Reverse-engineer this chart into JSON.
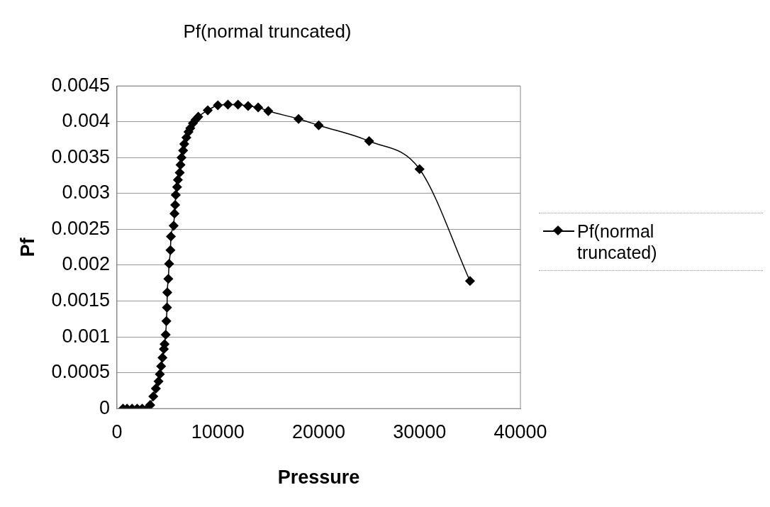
{
  "chart_data": {
    "type": "line",
    "title": "Pf(normal truncated)",
    "xlabel": "Pressure",
    "ylabel": "Pf",
    "xlim": [
      0,
      40000
    ],
    "xticks": [
      0,
      10000,
      20000,
      30000,
      40000
    ],
    "ylim": [
      0,
      0.0045
    ],
    "yticks": [
      0,
      0.0005,
      0.001,
      0.0015,
      0.002,
      0.0025,
      0.003,
      0.0035,
      0.004,
      0.0045
    ],
    "grid": "y",
    "legend": "right",
    "marker": "diamond",
    "line_style": "solid",
    "series": [
      {
        "name": "Pf(normal truncated)",
        "color": "#000000",
        "x": [
          600,
          1000,
          1500,
          2000,
          2500,
          3000,
          3300,
          3600,
          3860,
          4120,
          4250,
          4380,
          4510,
          4650,
          4720,
          4830,
          4900,
          4960,
          4990,
          5090,
          5170,
          5300,
          5350,
          5620,
          5700,
          5770,
          5830,
          5960,
          6040,
          6220,
          6300,
          6400,
          6560,
          6670,
          6880,
          7090,
          7270,
          7530,
          7800,
          8060,
          9000,
          10000,
          11000,
          12000,
          13000,
          14000,
          15000,
          18000,
          20000,
          25000,
          30000,
          35000
        ],
        "values": [
          0,
          0,
          0,
          0,
          0,
          0,
          5e-05,
          0.00017,
          0.00028,
          0.00038,
          0.00048,
          0.00059,
          0.00071,
          0.00083,
          0.0009,
          0.00103,
          0.00122,
          0.00141,
          0.00162,
          0.00181,
          0.00202,
          0.00221,
          0.0024,
          0.00255,
          0.00272,
          0.00284,
          0.00298,
          0.00309,
          0.00319,
          0.00329,
          0.0034,
          0.0035,
          0.0036,
          0.00369,
          0.00378,
          0.00386,
          0.00391,
          0.00398,
          0.00403,
          0.00407,
          0.00416,
          0.00423,
          0.00424,
          0.00424,
          0.00422,
          0.0042,
          0.00415,
          0.00404,
          0.00395,
          0.00373,
          0.00334,
          0.00178
        ]
      }
    ]
  }
}
